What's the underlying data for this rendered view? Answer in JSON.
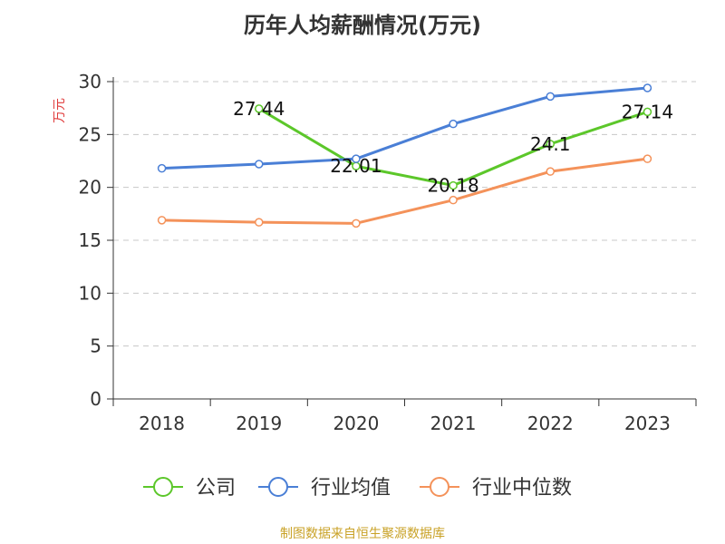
{
  "chart_data": {
    "type": "line",
    "title": "历年人均薪酬情况(万元)",
    "ylabel": "万元",
    "xlabel": "",
    "categories": [
      "2018",
      "2019",
      "2020",
      "2021",
      "2022",
      "2023"
    ],
    "ylim": [
      0,
      30
    ],
    "yticks": [
      0,
      5,
      10,
      15,
      20,
      25,
      30
    ],
    "grid": true,
    "legend_position": "bottom",
    "series": [
      {
        "name": "公司",
        "color": "#5cc72a",
        "values": [
          null,
          27.44,
          22.01,
          20.18,
          24.1,
          27.14
        ],
        "labels": [
          "",
          "27.44",
          "22.01",
          "20.18",
          "24.1",
          "27.14"
        ]
      },
      {
        "name": "行业均值",
        "color": "#4a7fd6",
        "values": [
          21.8,
          22.2,
          22.7,
          26.0,
          28.6,
          29.4
        ]
      },
      {
        "name": "行业中位数",
        "color": "#f4925a",
        "values": [
          16.9,
          16.7,
          16.6,
          18.8,
          21.5,
          22.7
        ]
      }
    ]
  },
  "ylabel_color": "#e03c3c",
  "source": "制图数据来自恒生聚源数据库"
}
